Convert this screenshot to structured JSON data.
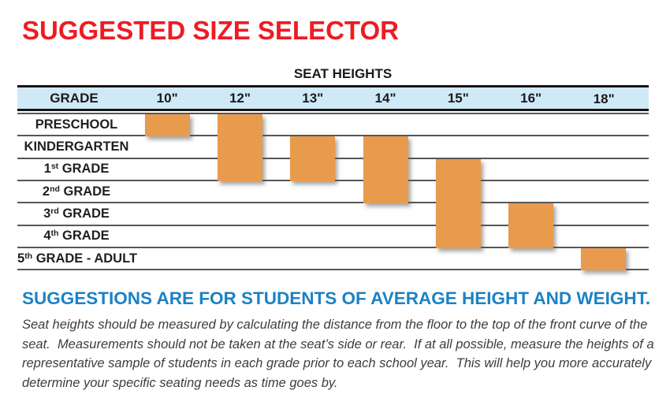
{
  "title": "SUGGESTED SIZE SELECTOR",
  "table": {
    "axis_title": "SEAT HEIGHTS",
    "grade_header": "GRADE",
    "columns": [
      "10\"",
      "12\"",
      "13\"",
      "14\"",
      "15\"",
      "16\"",
      "18\""
    ],
    "rows": [
      {
        "prefix": "PRESCHOOL",
        "sup": "",
        "suffix": ""
      },
      {
        "prefix": "KINDERGARTEN",
        "sup": "",
        "suffix": ""
      },
      {
        "prefix": "1",
        "sup": "st",
        "suffix": " GRADE"
      },
      {
        "prefix": "2",
        "sup": "nd",
        "suffix": " GRADE"
      },
      {
        "prefix": "3",
        "sup": "rd",
        "suffix": " GRADE"
      },
      {
        "prefix": "4",
        "sup": "th",
        "suffix": " GRADE"
      },
      {
        "prefix": "5",
        "sup": "th",
        "suffix": " GRADE - ADULT"
      }
    ]
  },
  "chart_data": {
    "type": "table",
    "title": "SEAT HEIGHTS",
    "row_header": "GRADE",
    "columns": [
      "10\"",
      "12\"",
      "13\"",
      "14\"",
      "15\"",
      "16\"",
      "18\""
    ],
    "rows": [
      "PRESCHOOL",
      "KINDERGARTEN",
      "1st GRADE",
      "2nd GRADE",
      "3rd GRADE",
      "4th GRADE",
      "5th GRADE - ADULT"
    ],
    "marks": [
      {
        "seat_height": "10\"",
        "grades": [
          "PRESCHOOL"
        ]
      },
      {
        "seat_height": "12\"",
        "grades": [
          "PRESCHOOL",
          "KINDERGARTEN",
          "1st GRADE"
        ]
      },
      {
        "seat_height": "13\"",
        "grades": [
          "KINDERGARTEN",
          "1st GRADE"
        ]
      },
      {
        "seat_height": "14\"",
        "grades": [
          "KINDERGARTEN",
          "1st GRADE",
          "2nd GRADE"
        ]
      },
      {
        "seat_height": "15\"",
        "grades": [
          "1st GRADE",
          "2nd GRADE",
          "3rd GRADE",
          "4th GRADE"
        ]
      },
      {
        "seat_height": "16\"",
        "grades": [
          "3rd GRADE",
          "4th GRADE"
        ]
      },
      {
        "seat_height": "18\"",
        "grades": [
          "5th GRADE - ADULT"
        ]
      }
    ],
    "bar_spans": [
      {
        "name": "bar-10in",
        "col": 0,
        "row_start": 0,
        "row_end": 0
      },
      {
        "name": "bar-12in",
        "col": 1,
        "row_start": 0,
        "row_end": 2
      },
      {
        "name": "bar-13in",
        "col": 2,
        "row_start": 1,
        "row_end": 2
      },
      {
        "name": "bar-14in",
        "col": 3,
        "row_start": 1,
        "row_end": 3
      },
      {
        "name": "bar-15in",
        "col": 4,
        "row_start": 2,
        "row_end": 5
      },
      {
        "name": "bar-16in",
        "col": 5,
        "row_start": 4,
        "row_end": 5
      },
      {
        "name": "bar-18in",
        "col": 6,
        "row_start": 6,
        "row_end": 6
      }
    ],
    "bar_color": "#e89b4d",
    "legend_position": "none",
    "grid": true
  },
  "footer": {
    "heading": "SUGGESTIONS ARE FOR STUDENTS OF AVERAGE HEIGHT AND WEIGHT.",
    "body": "Seat heights should be measured by calculating the distance from the floor to the top of the front curve of the seat.  Measurements should not be taken at the seat’s side or rear.  If at all possible, measure the heights of a representative sample of students in each grade prior to each school year.  This will help you more accurately determine your specific seating needs as time goes by."
  },
  "colors": {
    "title_red": "#ed1c24",
    "heading_blue": "#1b82c5",
    "header_band_blue": "#cfe9f7",
    "bar_orange": "#e89b4d"
  }
}
